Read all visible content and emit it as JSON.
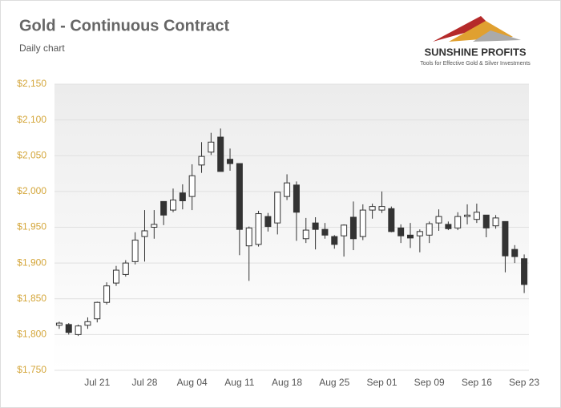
{
  "chart_data": {
    "type": "candlestick",
    "title": "Gold - Continuous Contract",
    "subtitle": "Daily chart",
    "logo": {
      "name": "SUNSHINE PROFITS",
      "tagline": "Tools for Effective Gold & Silver Investments"
    },
    "categories": [
      null,
      null,
      null,
      null,
      "Jul 21",
      null,
      null,
      null,
      null,
      "Jul 28",
      null,
      null,
      null,
      null,
      "Aug 04",
      null,
      null,
      null,
      null,
      "Aug 11",
      null,
      null,
      null,
      null,
      "Aug 18",
      null,
      null,
      null,
      null,
      "Aug 25",
      null,
      null,
      null,
      null,
      "Sep 01",
      null,
      null,
      null,
      null,
      "Sep 09",
      null,
      null,
      null,
      null,
      "Sep 16",
      null,
      null,
      null,
      null,
      "Sep 23"
    ],
    "open": [
      1813,
      1814,
      1800,
      1813,
      1822,
      1845,
      1872,
      1884,
      1902,
      1937,
      1950,
      1986,
      1974,
      1998,
      1993,
      2037,
      2055,
      2076,
      2045,
      2039,
      1924,
      1926,
      1965,
      1956,
      1993,
      2009,
      1934,
      1956,
      1947,
      1937,
      1938,
      1964,
      1937,
      1974,
      1974,
      1976,
      1949,
      1939,
      1938,
      1939,
      1956,
      1954,
      1949,
      1965,
      1961,
      1967,
      1952,
      1958,
      1919,
      1906
    ],
    "high": [
      1818,
      1816,
      1814,
      1824,
      1846,
      1873,
      1896,
      1904,
      1943,
      1974,
      1974,
      1986,
      2004,
      2010,
      2038,
      2069,
      2082,
      2088,
      2060,
      2039,
      1951,
      1973,
      1970,
      1999,
      2024,
      2014,
      1963,
      1964,
      1956,
      1939,
      1954,
      1986,
      1982,
      1983,
      2000,
      1979,
      1954,
      1956,
      1947,
      1958,
      1975,
      1958,
      1971,
      1982,
      1983,
      1967,
      1967,
      1958,
      1925,
      1912
    ],
    "low": [
      1808,
      1800,
      1798,
      1808,
      1817,
      1842,
      1868,
      1881,
      1898,
      1902,
      1934,
      1953,
      1971,
      1975,
      1974,
      2026,
      2051,
      2028,
      2029,
      1911,
      1875,
      1923,
      1944,
      1940,
      1988,
      1931,
      1928,
      1919,
      1934,
      1920,
      1909,
      1918,
      1932,
      1962,
      1970,
      1943,
      1928,
      1921,
      1915,
      1928,
      1945,
      1946,
      1946,
      1954,
      1956,
      1936,
      1948,
      1887,
      1900,
      1858
    ],
    "close": [
      1816,
      1803,
      1812,
      1818,
      1845,
      1868,
      1890,
      1900,
      1932,
      1945,
      1954,
      1967,
      1988,
      1987,
      2022,
      2049,
      2069,
      2028,
      2039,
      1947,
      1949,
      1969,
      1951,
      1999,
      2012,
      1971,
      1946,
      1947,
      1939,
      1926,
      1953,
      1934,
      1974,
      1979,
      1979,
      1944,
      1938,
      1935,
      1944,
      1955,
      1965,
      1948,
      1965,
      1967,
      1971,
      1949,
      1963,
      1910,
      1909,
      1870
    ],
    "up_color": "#ffffff",
    "down_color": "#333333",
    "outline_color": "#333333",
    "ylim": [
      1750,
      2150
    ],
    "yticks": [
      {
        "value": 1750,
        "label": "$1,750"
      },
      {
        "value": 1800,
        "label": "$1,800"
      },
      {
        "value": 1850,
        "label": "$1,850"
      },
      {
        "value": 1900,
        "label": "$1,900"
      },
      {
        "value": 1950,
        "label": "$1,950"
      },
      {
        "value": 2000,
        "label": "$2,000"
      },
      {
        "value": 2050,
        "label": "$2,050"
      },
      {
        "value": 2100,
        "label": "$2,100"
      },
      {
        "value": 2150,
        "label": "$2,150"
      }
    ],
    "grid": true
  }
}
